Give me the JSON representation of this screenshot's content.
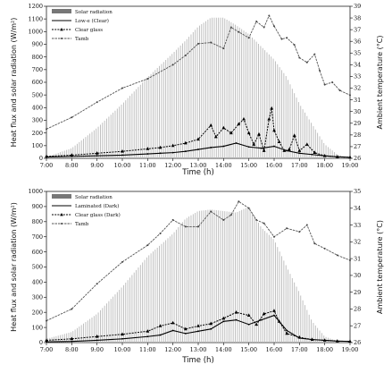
{
  "chart_data": [
    {
      "type": "bar",
      "xlabel": "Time (h)",
      "ylabel": "Heat flux and solar radiation (W/m²)",
      "y2label": "Ambient temperature (°C)",
      "xticks": [
        "7:00",
        "8:00",
        "9:00",
        "10:00",
        "11:00",
        "12:00",
        "13:00",
        "14:00",
        "15:00",
        "16:00",
        "17:00",
        "18:00",
        "19:00"
      ],
      "ylim": [
        0,
        1200
      ],
      "yticks": [
        0,
        100,
        200,
        300,
        400,
        500,
        600,
        700,
        800,
        900,
        1000,
        1100,
        1200
      ],
      "y2lim": [
        26,
        39
      ],
      "y2ticks": [
        26,
        27,
        28,
        29,
        30,
        31,
        32,
        33,
        34,
        35,
        36,
        37,
        38,
        39
      ],
      "legend": [
        "Solar radiation",
        "Low-e (Clear)",
        "Clear glass",
        "Tamb"
      ],
      "legend_position": "top-left",
      "series": [
        {
          "name": "Solar radiation",
          "x_hours": [
            7,
            8,
            9,
            10,
            11,
            12,
            12.5,
            13,
            13.5,
            14,
            14.5,
            15,
            15.5,
            16,
            16.5,
            17,
            17.5,
            18,
            18.5,
            19
          ],
          "values": [
            10,
            80,
            240,
            430,
            640,
            830,
            930,
            1040,
            1110,
            1110,
            1050,
            980,
            880,
            780,
            640,
            430,
            270,
            110,
            30,
            5
          ]
        },
        {
          "name": "Low-e (Clear)",
          "x_hours": [
            7,
            8,
            9,
            10,
            11,
            11.5,
            12,
            12.5,
            13,
            13.5,
            14,
            14.5,
            15,
            15.5,
            16,
            16.5,
            17,
            17.5,
            18,
            18.5,
            19
          ],
          "values": [
            10,
            15,
            20,
            25,
            35,
            40,
            45,
            55,
            70,
            85,
            95,
            120,
            90,
            80,
            95,
            60,
            40,
            30,
            20,
            12,
            8
          ]
        },
        {
          "name": "Clear glass",
          "x_hours": [
            7,
            8,
            9,
            10,
            11,
            11.5,
            12,
            12.5,
            13,
            13.5,
            13.7,
            14,
            14.3,
            14.6,
            14.8,
            15,
            15.2,
            15.4,
            15.6,
            15.8,
            15.9,
            16,
            16.2,
            16.4,
            16.6,
            16.8,
            17,
            17.3,
            17.6,
            18,
            18.5,
            19
          ],
          "values": [
            15,
            25,
            40,
            55,
            75,
            85,
            100,
            120,
            150,
            260,
            170,
            240,
            200,
            270,
            310,
            200,
            110,
            190,
            60,
            310,
            395,
            220,
            130,
            60,
            70,
            180,
            60,
            110,
            45,
            20,
            12,
            8
          ]
        },
        {
          "name": "Tamb",
          "x_hours": [
            7,
            8,
            9,
            10,
            11,
            12,
            12.5,
            13,
            13.5,
            14,
            14.3,
            14.6,
            15,
            15.3,
            15.6,
            15.8,
            16,
            16.3,
            16.5,
            16.8,
            17,
            17.3,
            17.6,
            17.8,
            18,
            18.3,
            18.6,
            19
          ],
          "values": [
            28.5,
            29.5,
            30.8,
            32.0,
            32.8,
            34.0,
            34.8,
            35.8,
            35.9,
            35.4,
            37.2,
            36.8,
            36.3,
            37.7,
            37.2,
            38.2,
            37.3,
            36.2,
            36.3,
            35.7,
            34.6,
            34.2,
            34.9,
            33.5,
            32.3,
            32.5,
            31.8,
            31.4
          ]
        }
      ]
    },
    {
      "type": "bar",
      "xlabel": "Time (h)",
      "ylabel": "Heat flux and solar radiation (W/m²)",
      "y2label": "Ambient temperature (°C)",
      "xticks": [
        "7:00",
        "8:00",
        "9:00",
        "10:00",
        "11:00",
        "12:00",
        "13:00",
        "14:00",
        "15:00",
        "16:00",
        "17:00",
        "18:00",
        "19:00"
      ],
      "ylim": [
        0,
        1000
      ],
      "yticks": [
        0,
        100,
        200,
        300,
        400,
        500,
        600,
        700,
        800,
        900,
        1000
      ],
      "y2lim": [
        26,
        35
      ],
      "y2ticks": [
        26,
        27,
        28,
        29,
        30,
        31,
        32,
        33,
        34,
        35
      ],
      "legend": [
        "Solar radiation",
        "Laminated (Dark)",
        "Clear glass (Dark)",
        "Tamb"
      ],
      "legend_position": "top-left",
      "series": [
        {
          "name": "Solar radiation",
          "x_hours": [
            7,
            8,
            9,
            10,
            11,
            12,
            12.5,
            13,
            13.5,
            14,
            14.5,
            15,
            15.5,
            16,
            16.5,
            17,
            17.5,
            18,
            18.5,
            19
          ],
          "values": [
            25,
            70,
            190,
            370,
            570,
            720,
            820,
            870,
            880,
            870,
            860,
            900,
            760,
            680,
            500,
            330,
            140,
            40,
            10,
            5
          ]
        },
        {
          "name": "Laminated (Dark)",
          "x_hours": [
            7,
            8,
            9,
            10,
            11,
            11.5,
            12,
            12.5,
            13,
            13.5,
            14,
            14.5,
            15,
            15.5,
            16,
            16.5,
            17,
            17.5,
            18,
            18.5,
            19
          ],
          "values": [
            5,
            8,
            15,
            25,
            40,
            50,
            80,
            60,
            75,
            90,
            140,
            150,
            120,
            150,
            180,
            80,
            30,
            20,
            15,
            10,
            8
          ]
        },
        {
          "name": "Clear glass (Dark)",
          "x_hours": [
            7,
            8,
            9,
            10,
            11,
            11.5,
            12,
            12.5,
            13,
            13.5,
            14,
            14.5,
            15,
            15.3,
            15.6,
            16,
            16.2,
            16.5,
            17,
            17.5,
            18,
            18.5,
            19
          ],
          "values": [
            15,
            25,
            40,
            55,
            75,
            110,
            130,
            90,
            110,
            125,
            160,
            200,
            180,
            120,
            190,
            210,
            140,
            60,
            35,
            20,
            15,
            10,
            8
          ]
        },
        {
          "name": "Tamb",
          "x_hours": [
            7,
            8,
            9,
            10,
            11,
            11.5,
            12,
            12.5,
            13,
            13.5,
            14,
            14.3,
            14.6,
            15,
            15.3,
            15.6,
            16,
            16.5,
            17,
            17.3,
            17.6,
            18,
            18.5,
            19
          ],
          "values": [
            27.3,
            28.0,
            29.5,
            30.8,
            31.8,
            32.5,
            33.3,
            32.9,
            32.9,
            33.8,
            33.3,
            33.6,
            34.4,
            34.0,
            33.3,
            33.1,
            32.3,
            32.8,
            32.6,
            33.0,
            31.9,
            31.6,
            31.2,
            30.9
          ]
        }
      ]
    }
  ]
}
